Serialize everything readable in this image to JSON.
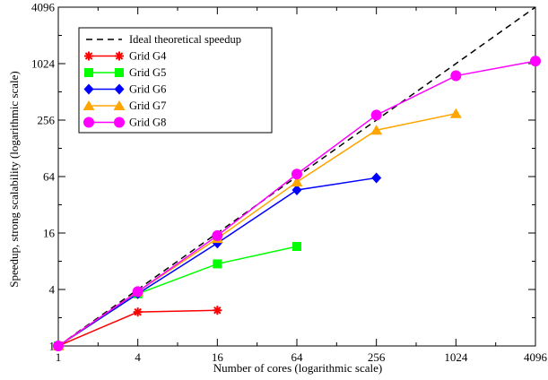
{
  "chart_data": {
    "type": "line",
    "xlabel": "Number of cores (logarithmic scale)",
    "ylabel": "Speedup, strong scalability (logarithmic scale)",
    "xscale": "log2",
    "yscale": "log2",
    "xlim": [
      1,
      4096
    ],
    "ylim": [
      1,
      4096
    ],
    "x_ticks": [
      1,
      4,
      16,
      64,
      256,
      1024,
      4096
    ],
    "x_tick_labels": [
      "1",
      "4",
      "16",
      "64",
      "256",
      "1024",
      "4096"
    ],
    "y_ticks": [
      1,
      4,
      16,
      64,
      256,
      1024,
      4096
    ],
    "y_tick_labels": [
      "1",
      "4",
      "16",
      "64",
      "256",
      "1024",
      "4096"
    ],
    "grid": false,
    "legend_position": "top-left",
    "series": [
      {
        "name": "Ideal theoretical speedup",
        "color": "#000000",
        "marker": "none",
        "dash": true,
        "x": [
          1,
          4096
        ],
        "y": [
          1,
          4096
        ]
      },
      {
        "name": "Grid G4",
        "color": "#ff0000",
        "marker": "star",
        "x": [
          1,
          4,
          16
        ],
        "y": [
          1,
          2.3,
          2.4
        ]
      },
      {
        "name": "Grid G5",
        "color": "#00ff00",
        "marker": "square",
        "x": [
          1,
          4,
          16,
          64
        ],
        "y": [
          1,
          3.6,
          7.5,
          11.5
        ]
      },
      {
        "name": "Grid G6",
        "color": "#0000ff",
        "marker": "diamond",
        "x": [
          1,
          4,
          16,
          64,
          256
        ],
        "y": [
          1,
          3.6,
          12.5,
          46,
          62
        ]
      },
      {
        "name": "Grid G7",
        "color": "#ffa500",
        "marker": "triangle",
        "x": [
          1,
          4,
          16,
          64,
          256,
          1024
        ],
        "y": [
          1,
          3.8,
          14,
          56,
          200,
          300
        ]
      },
      {
        "name": "Grid G8",
        "color": "#ff00ff",
        "marker": "circle",
        "x": [
          1,
          4,
          16,
          64,
          256,
          1024,
          4096
        ],
        "y": [
          1,
          3.8,
          15,
          68,
          290,
          760,
          1090
        ]
      }
    ]
  }
}
